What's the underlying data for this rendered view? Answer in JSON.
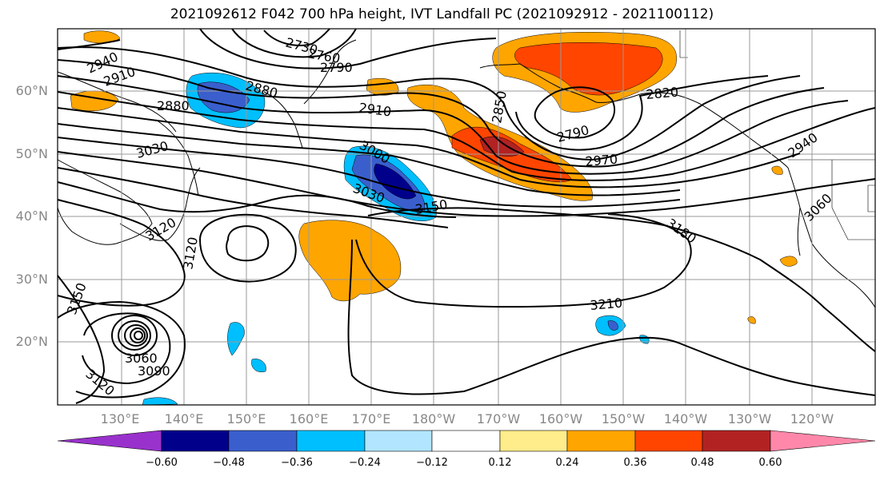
{
  "title": "2021092612 F042 700 hPa height, IVT Landfall PC (2021092912 - 2021100112)",
  "lat_labels": [
    "60°N",
    "50°N",
    "40°N",
    "30°N",
    "20°N"
  ],
  "lon_labels": [
    "130°E",
    "140°E",
    "150°E",
    "160°E",
    "170°E",
    "180°W",
    "170°W",
    "160°W",
    "150°W",
    "140°W",
    "130°W",
    "120°W"
  ],
  "contour_labels": [
    "2730",
    "2760",
    "2790",
    "2940",
    "2910",
    "2880",
    "2880",
    "2910",
    "2850",
    "2820",
    "2790",
    "2940",
    "3030",
    "3000",
    "3030",
    "2970",
    "3150",
    "3060",
    "3120",
    "3180",
    "3120",
    "3150",
    "3210",
    "3060",
    "3090",
    "3120"
  ],
  "colorbar": {
    "colors": [
      "#9932cc",
      "#00008b",
      "#3a5fcd",
      "#00bfff",
      "#b2e5ff",
      "#ffffff",
      "#ffec8b",
      "#ffa500",
      "#ff4500",
      "#b22222",
      "#ff88aa"
    ],
    "tick_labels": [
      "−0.60",
      "−0.48",
      "−0.36",
      "−0.24",
      "−0.12",
      "0.12",
      "0.24",
      "0.36",
      "0.48",
      "0.60"
    ]
  }
}
